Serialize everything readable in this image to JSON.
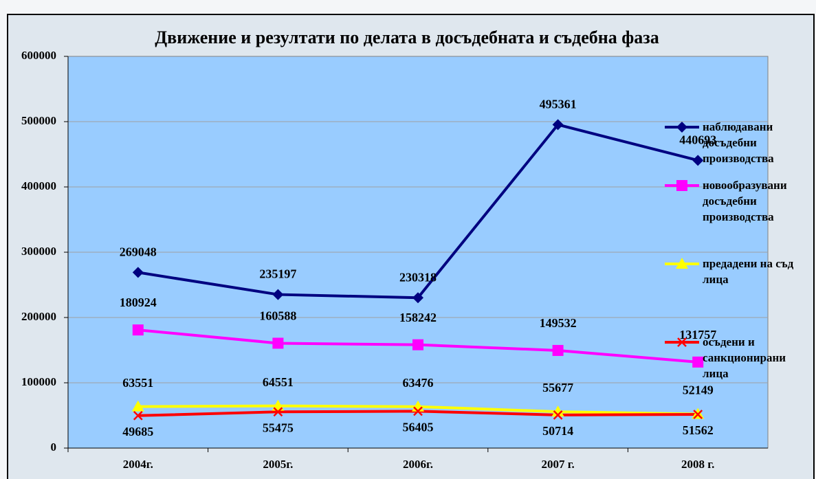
{
  "chart_data": {
    "type": "line",
    "title": "Движение и резултати по делата в досъдебната и съдебна фаза",
    "categories": [
      "2004г.",
      "2005г.",
      "2006г.",
      "2007 г.",
      "2008 г."
    ],
    "series": [
      {
        "name": "наблюдавани досъдебни производства",
        "color": "#000080",
        "marker": "diamond",
        "values": [
          269048,
          235197,
          230318,
          495361,
          440693
        ]
      },
      {
        "name": "новообразувани досъдебни производства",
        "color": "#ff00ff",
        "marker": "square",
        "values": [
          180924,
          160588,
          158242,
          149532,
          131757
        ]
      },
      {
        "name": "предадени на съд лица",
        "color": "#ffff00",
        "marker": "triangle",
        "values": [
          63551,
          64551,
          63476,
          55677,
          52149
        ]
      },
      {
        "name": "осъдени и санкционирани лица",
        "color": "#ff0000",
        "marker": "x",
        "values": [
          49685,
          55475,
          56405,
          50714,
          51562
        ]
      }
    ],
    "ylim": [
      0,
      600000
    ],
    "yticks": [
      0,
      100000,
      200000,
      300000,
      400000,
      500000,
      600000
    ],
    "grid": true,
    "legend": "right"
  }
}
